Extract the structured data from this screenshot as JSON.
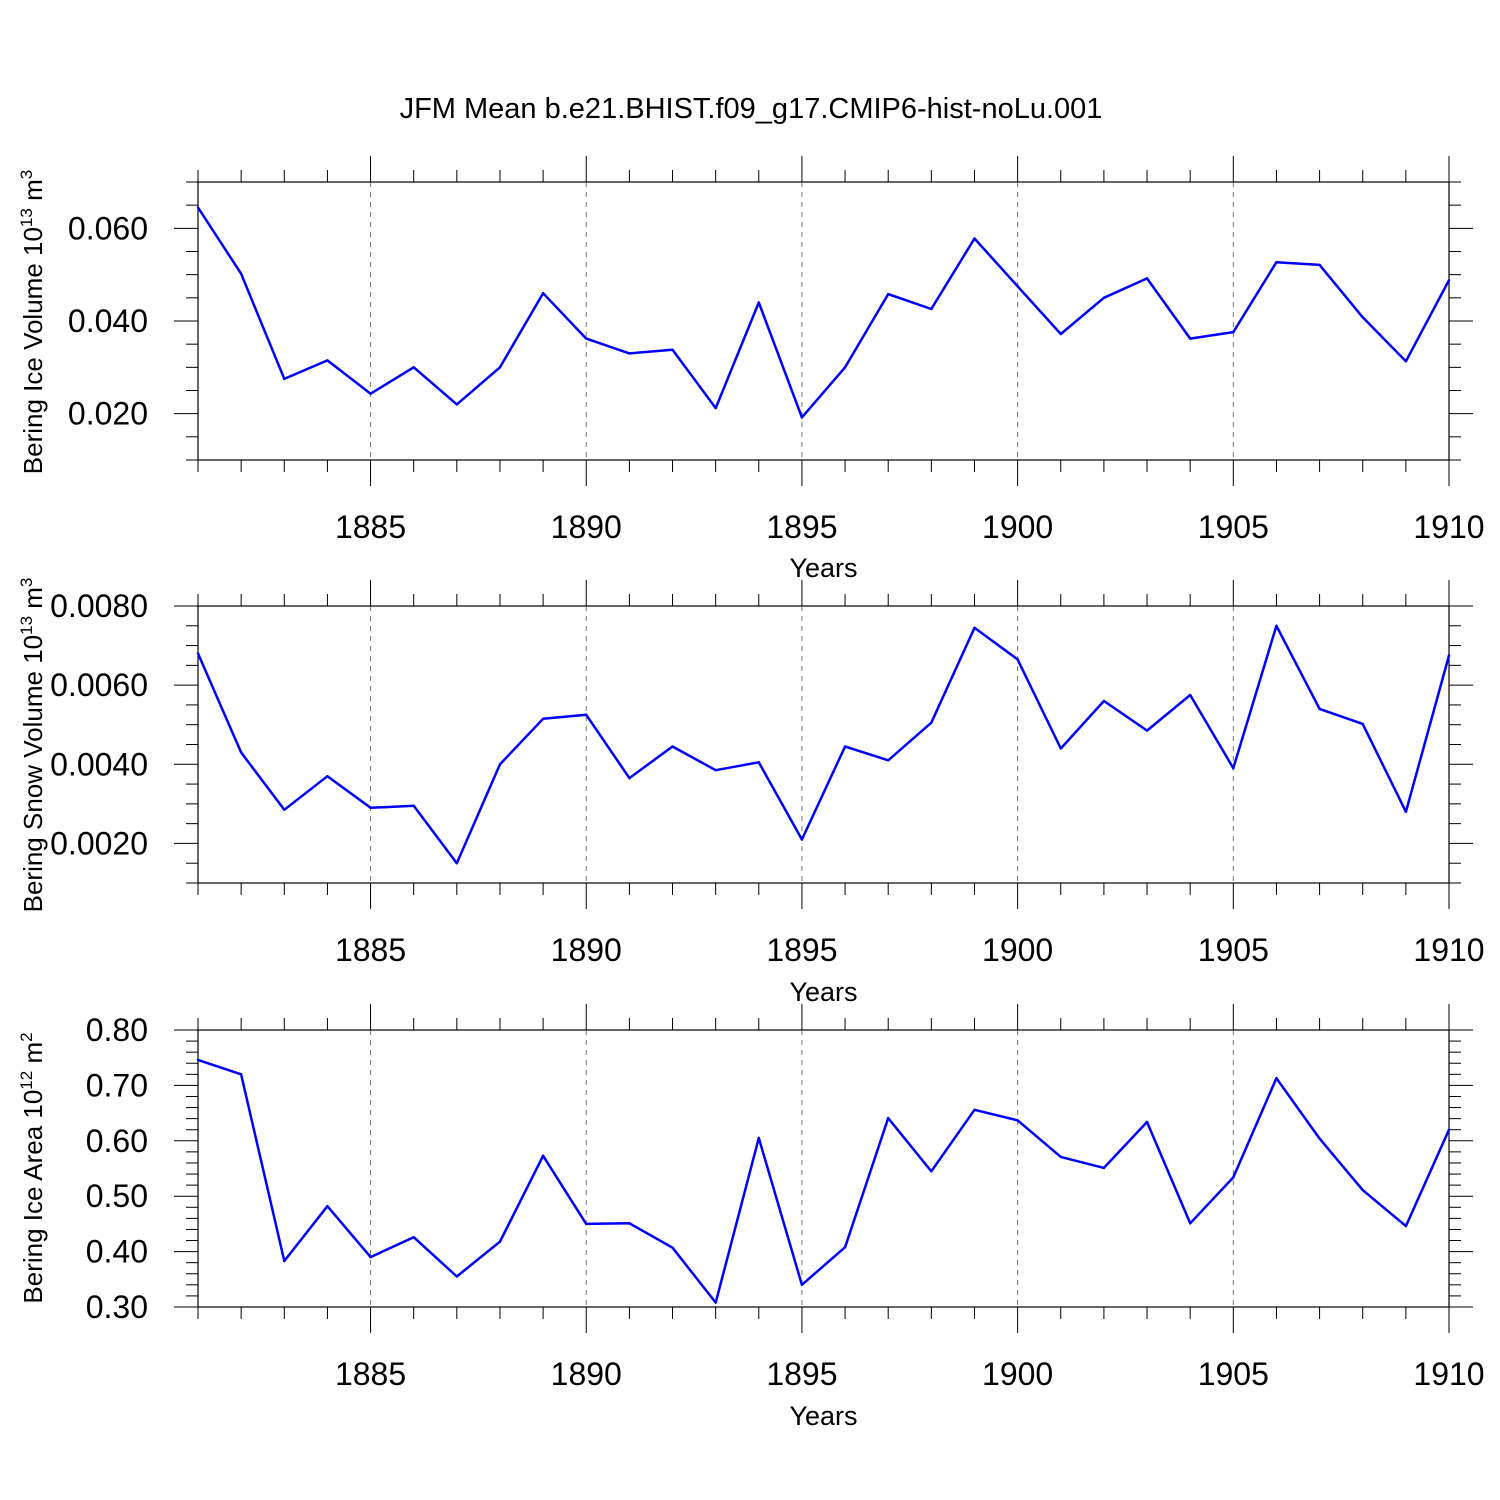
{
  "figure": {
    "title": "JFM Mean b.e21.BHIST.f09_g17.CMIP6-hist-noLu.001",
    "line_color": "#0000ff"
  },
  "chart_data": [
    {
      "type": "line",
      "id": "ice-volume",
      "title": "",
      "xlabel": "Years",
      "ylabel": "Bering Ice Volume 10",
      "ylabel_sup1": "13",
      "ylabel_mid": " m",
      "ylabel_sup2": "3",
      "xlim": [
        1881,
        1910
      ],
      "ylim": [
        0.01,
        0.07
      ],
      "xticks": [
        1885,
        1890,
        1895,
        1900,
        1905,
        1910
      ],
      "yticks": [
        0.02,
        0.04,
        0.06
      ],
      "ytick_labels": [
        "0.020",
        "0.040",
        "0.060"
      ],
      "yminor": [
        0.01,
        0.015,
        0.025,
        0.03,
        0.035,
        0.045,
        0.05,
        0.055,
        0.065,
        0.07
      ],
      "x": [
        1881,
        1882,
        1883,
        1884,
        1885,
        1886,
        1887,
        1888,
        1889,
        1890,
        1891,
        1892,
        1893,
        1894,
        1895,
        1896,
        1897,
        1898,
        1899,
        1900,
        1901,
        1902,
        1903,
        1904,
        1905,
        1906,
        1907,
        1908,
        1909,
        1910
      ],
      "series": [
        {
          "name": "Bering Ice Volume",
          "values": [
            0.0645,
            0.0502,
            0.0275,
            0.0315,
            0.0243,
            0.03,
            0.022,
            0.03,
            0.046,
            0.0362,
            0.033,
            0.0338,
            0.0212,
            0.044,
            0.0192,
            0.03,
            0.0458,
            0.0426,
            0.0578,
            0.0475,
            0.0372,
            0.045,
            0.0492,
            0.0362,
            0.0376,
            0.0527,
            0.0521,
            0.0408,
            0.0313,
            0.0488
          ]
        }
      ]
    },
    {
      "type": "line",
      "id": "snow-volume",
      "title": "",
      "xlabel": "Years",
      "ylabel": "Bering Snow Volume 10",
      "ylabel_sup1": "13",
      "ylabel_mid": " m",
      "ylabel_sup2": "3",
      "xlim": [
        1881,
        1910
      ],
      "ylim": [
        0.001,
        0.008
      ],
      "xticks": [
        1885,
        1890,
        1895,
        1900,
        1905,
        1910
      ],
      "yticks": [
        0.002,
        0.004,
        0.006,
        0.008
      ],
      "ytick_labels": [
        "0.0020",
        "0.0040",
        "0.0060",
        "0.0080"
      ],
      "yminor": [
        0.001,
        0.0015,
        0.0025,
        0.003,
        0.0035,
        0.0045,
        0.005,
        0.0055,
        0.0065,
        0.007,
        0.0075
      ],
      "x": [
        1881,
        1882,
        1883,
        1884,
        1885,
        1886,
        1887,
        1888,
        1889,
        1890,
        1891,
        1892,
        1893,
        1894,
        1895,
        1896,
        1897,
        1898,
        1899,
        1900,
        1901,
        1902,
        1903,
        1904,
        1905,
        1906,
        1907,
        1908,
        1909,
        1910
      ],
      "series": [
        {
          "name": "Bering Snow Volume",
          "values": [
            0.0068,
            0.0043,
            0.00285,
            0.0037,
            0.0029,
            0.00295,
            0.0015,
            0.004,
            0.00515,
            0.00525,
            0.00365,
            0.00445,
            0.00385,
            0.00405,
            0.0021,
            0.00445,
            0.0041,
            0.00505,
            0.00745,
            0.00665,
            0.0044,
            0.0056,
            0.00485,
            0.00575,
            0.0039,
            0.0075,
            0.0054,
            0.00502,
            0.0028,
            0.00675
          ]
        }
      ]
    },
    {
      "type": "line",
      "id": "ice-area",
      "title": "",
      "xlabel": "Years",
      "ylabel": "Bering Ice Area 10",
      "ylabel_sup1": "12",
      "ylabel_mid": " m",
      "ylabel_sup2": "2",
      "xlim": [
        1881,
        1910
      ],
      "ylim": [
        0.3,
        0.8
      ],
      "xticks": [
        1885,
        1890,
        1895,
        1900,
        1905,
        1910
      ],
      "yticks": [
        0.3,
        0.4,
        0.5,
        0.6,
        0.7,
        0.8
      ],
      "ytick_labels": [
        "0.30",
        "0.40",
        "0.50",
        "0.60",
        "0.70",
        "0.80"
      ],
      "yminor": [
        0.32,
        0.34,
        0.36,
        0.38,
        0.42,
        0.44,
        0.46,
        0.48,
        0.52,
        0.54,
        0.56,
        0.58,
        0.62,
        0.64,
        0.66,
        0.68,
        0.72,
        0.74,
        0.76,
        0.78
      ],
      "x": [
        1881,
        1882,
        1883,
        1884,
        1885,
        1886,
        1887,
        1888,
        1889,
        1890,
        1891,
        1892,
        1893,
        1894,
        1895,
        1896,
        1897,
        1898,
        1899,
        1900,
        1901,
        1902,
        1903,
        1904,
        1905,
        1906,
        1907,
        1908,
        1909,
        1910
      ],
      "series": [
        {
          "name": "Bering Ice Area",
          "values": [
            0.746,
            0.72,
            0.383,
            0.482,
            0.39,
            0.426,
            0.355,
            0.418,
            0.573,
            0.45,
            0.451,
            0.407,
            0.308,
            0.605,
            0.34,
            0.408,
            0.641,
            0.545,
            0.656,
            0.637,
            0.571,
            0.551,
            0.634,
            0.451,
            0.534,
            0.713,
            0.604,
            0.511,
            0.446,
            0.62
          ]
        }
      ]
    }
  ]
}
